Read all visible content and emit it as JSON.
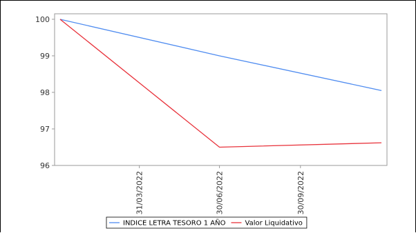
{
  "chart_data": {
    "type": "line",
    "title": "",
    "xlabel": "",
    "ylabel": "",
    "x_tick_labels": [
      "31/03/2022",
      "30/06/2022",
      "30/09/2022"
    ],
    "y_ticks": [
      96,
      97,
      98,
      99,
      100
    ],
    "ylim": [
      96,
      100.15
    ],
    "grid": false,
    "legend_position": "bottom",
    "series": [
      {
        "name": "INDICE LETRA TESORO 1 AÑO",
        "color": "#4f8cf0",
        "x": [
          "2021-12-31",
          "2022-06-30",
          "2022-12-31"
        ],
        "values": [
          100.0,
          99.0,
          98.05
        ]
      },
      {
        "name": "Valor Liquidativo",
        "color": "#e8313a",
        "x": [
          "2021-12-31",
          "2022-06-30",
          "2022-12-31"
        ],
        "values": [
          100.0,
          96.5,
          96.62
        ]
      }
    ]
  }
}
